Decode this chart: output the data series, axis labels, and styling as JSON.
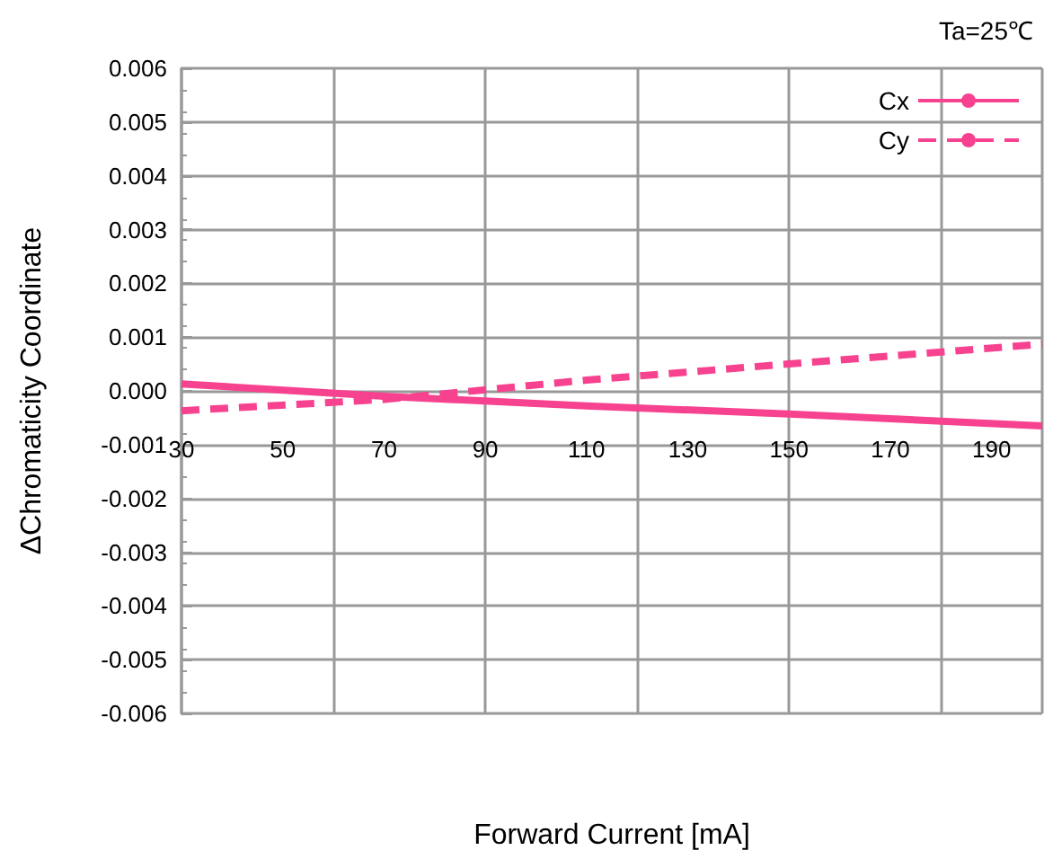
{
  "chart_data": {
    "type": "line",
    "xlabel": "Forward Current [mA]",
    "ylabel": "ΔChromaticity Coordinate",
    "annotations": [
      "Ta=25℃"
    ],
    "xlim": [
      30,
      200
    ],
    "xticks": [
      30,
      50,
      70,
      90,
      110,
      130,
      150,
      170,
      190
    ],
    "ylim": [
      -0.006,
      0.006
    ],
    "yticks": [
      {
        "value": -0.006,
        "label": "-0.006"
      },
      {
        "value": -0.005,
        "label": "-0.005"
      },
      {
        "value": -0.004,
        "label": "-0.004"
      },
      {
        "value": -0.003,
        "label": "-0.003"
      },
      {
        "value": -0.002,
        "label": "-0.002"
      },
      {
        "value": -0.001,
        "label": "-0.001"
      },
      {
        "value": 0,
        "label": "0.000"
      },
      {
        "value": 0.001,
        "label": "0.001"
      },
      {
        "value": 0.002,
        "label": "0.002"
      },
      {
        "value": 0.003,
        "label": "0.003"
      },
      {
        "value": 0.004,
        "label": "0.004"
      },
      {
        "value": 0.005,
        "label": "0.005"
      },
      {
        "value": 0.006,
        "label": "0.006"
      }
    ],
    "grid": true,
    "legend": "top right",
    "marker": "none",
    "series": [
      {
        "name": "Cx",
        "color": "#f7428f",
        "line_style": "solid",
        "x": [
          30,
          70,
          110,
          150,
          200
        ],
        "values": [
          0.00013,
          -0.0001,
          -0.00028,
          -0.00043,
          -0.00065
        ]
      },
      {
        "name": "Cy",
        "color": "#f7428f",
        "line_style": "dashed",
        "x": [
          30,
          70,
          110,
          150,
          200
        ],
        "values": [
          -0.00037,
          -0.00016,
          0.0002,
          0.0005,
          0.00087
        ]
      }
    ]
  }
}
